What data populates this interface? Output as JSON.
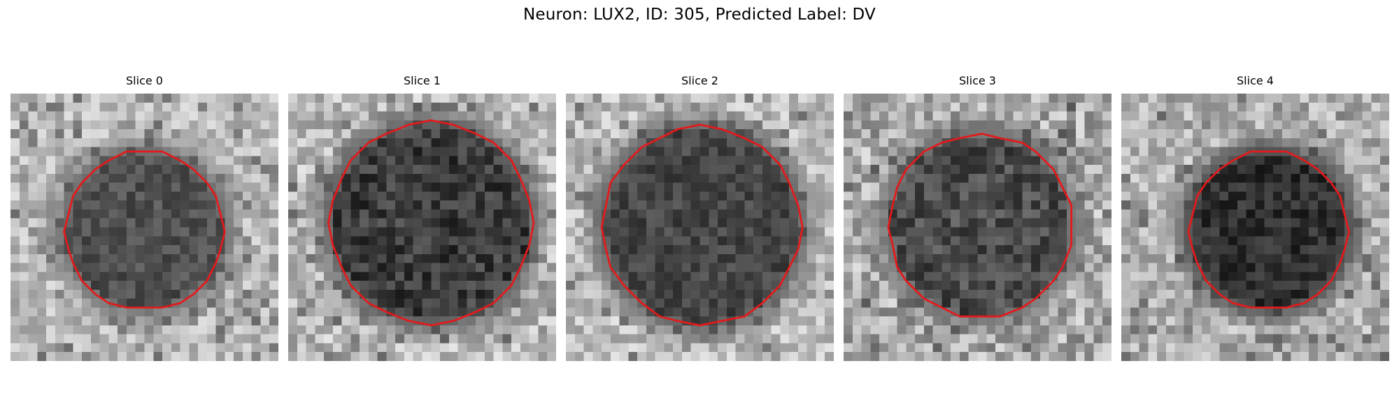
{
  "figure": {
    "title": "Neuron: LUX2, ID: 305, Predicted Label: DV"
  },
  "panels": [
    {
      "title": "Slice 0",
      "outline_color": "#e31a1c"
    },
    {
      "title": "Slice 1",
      "outline_color": "#e31a1c"
    },
    {
      "title": "Slice 2",
      "outline_color": "#e31a1c"
    },
    {
      "title": "Slice 3",
      "outline_color": "#e31a1c"
    },
    {
      "title": "Slice 4",
      "outline_color": "#e31a1c"
    }
  ],
  "colormap": "gray"
}
